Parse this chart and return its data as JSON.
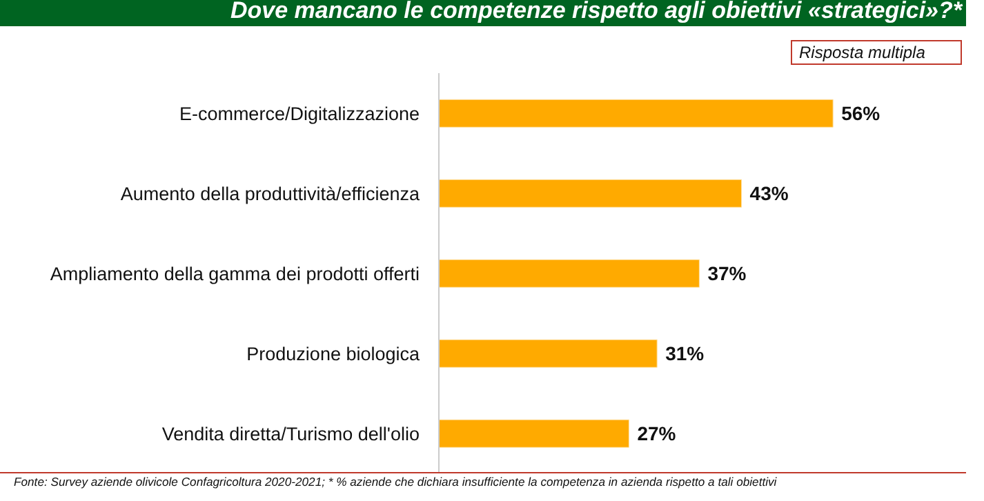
{
  "chart_data": {
    "type": "bar",
    "orientation": "horizontal",
    "title": "Dove mancano le competenze rispetto agli obiettivi «strategici»?*",
    "categories": [
      "E-commerce/Digitalizzazione",
      "Aumento della produttività/efficienza",
      "Ampliamento della gamma dei prodotti offerti",
      "Produzione biologica",
      "Vendita diretta/Turismo dell'olio"
    ],
    "values": [
      56,
      43,
      37,
      31,
      27
    ],
    "value_labels": [
      "56%",
      "43%",
      "37%",
      "31%",
      "27%"
    ],
    "color": "#ffaa00",
    "grid": false,
    "legend": false,
    "annotations": [
      "Risposta multipla",
      "Fonte: Survey aziende olivicole Confagricoltura 2020-2021; * % aziende che dichiara insufficiente la competenza in azienda rispetto a tali obiettivi"
    ]
  }
}
